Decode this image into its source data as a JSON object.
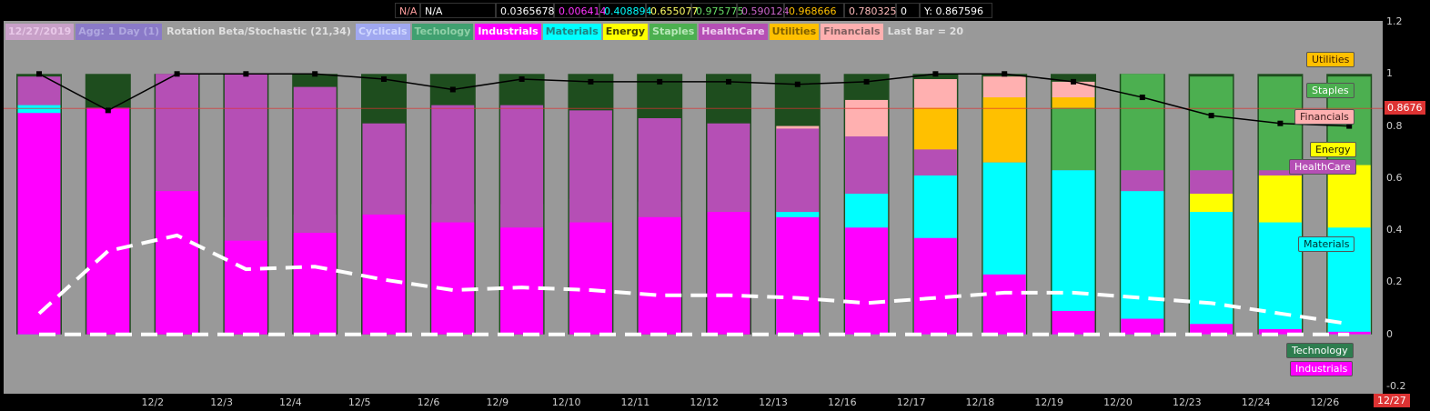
{
  "topbar": {
    "cells": [
      {
        "text": "N/A",
        "color": "#ff9f9f"
      },
      {
        "text": "N/A",
        "color": "#ffffff"
      },
      {
        "text": "0.0365678",
        "color": "#ffffff"
      },
      {
        "text": "0.006414",
        "color": "#ff33ff"
      },
      {
        "text": "0.408894",
        "color": "#00ffff"
      },
      {
        "text": "0.655077",
        "color": "#ffff66"
      },
      {
        "text": "0.975775",
        "color": "#66dd66"
      },
      {
        "text": "0.590124",
        "color": "#cc66cc"
      },
      {
        "text": "0.968666",
        "color": "#ffc000"
      },
      {
        "text": "0.780325",
        "color": "#ffbbbb"
      },
      {
        "text": "0",
        "color": "#ffffff"
      },
      {
        "text": "Y: 0.867596",
        "color": "#ffffff"
      }
    ]
  },
  "legend": [
    {
      "text": "12/27/2019",
      "bg": "#c8a0c8",
      "fg": "#e8c8e8"
    },
    {
      "text": "Agg: 1 Day (1)",
      "bg": "#8a7ac8",
      "fg": "#b0a8e0"
    },
    {
      "text": "Rotation Beta/Stochastic (21,34)",
      "bg": "#9a9a9a",
      "fg": "#e0e0e0"
    },
    {
      "text": "Cyclicals",
      "bg": "#a0a8f0",
      "fg": "#d0d8ff"
    },
    {
      "text": "Techology",
      "bg": "#40a070",
      "fg": "#90d0a8"
    },
    {
      "text": "Industrials",
      "bg": "#ff00ff",
      "fg": "#ffffff"
    },
    {
      "text": "Materials",
      "bg": "#00ffff",
      "fg": "#208080"
    },
    {
      "text": "Energy",
      "bg": "#ffff00",
      "fg": "#404000"
    },
    {
      "text": "Staples",
      "bg": "#4caf50",
      "fg": "#b8e8b8"
    },
    {
      "text": "HealthCare",
      "bg": "#b54fb5",
      "fg": "#f0d0f0"
    },
    {
      "text": "Utilities",
      "bg": "#ffc000",
      "fg": "#806000"
    },
    {
      "text": "Financials",
      "bg": "#ffb0b0",
      "fg": "#806060"
    },
    {
      "text": "Last Bar = 20",
      "bg": "#9a9a9a",
      "fg": "#e0e0e0"
    }
  ],
  "y_tick_labels": [
    "1.2",
    "1",
    "0.8",
    "0.6",
    "0.4",
    "0.2",
    "0",
    "-0.2"
  ],
  "current_value_label": "0.8676",
  "last_date_label": "12/27",
  "right_labels": [
    {
      "text": "Utilities",
      "bg": "#ffc000",
      "fg": "#402000"
    },
    {
      "text": "Staples",
      "bg": "#4caf50",
      "fg": "#ffffff"
    },
    {
      "text": "Financials",
      "bg": "#ffb0b0",
      "fg": "#402020"
    },
    {
      "text": "Energy",
      "bg": "#ffff00",
      "fg": "#202000"
    },
    {
      "text": "HealthCare",
      "bg": "#b54fb5",
      "fg": "#ffffff"
    },
    {
      "text": "Materials",
      "bg": "#00ffff",
      "fg": "#003030"
    },
    {
      "text": "Technology",
      "bg": "#2e7d4f",
      "fg": "#ffffff"
    },
    {
      "text": "Industrials",
      "bg": "#ff00ff",
      "fg": "#ffffff"
    }
  ],
  "chart_data": {
    "type": "bar",
    "title": "Rotation Beta/Stochastic (21,34)",
    "ylim": [
      -0.2,
      1.2
    ],
    "grid": false,
    "categories": [
      "",
      "12/2",
      "12/3",
      "12/4",
      "12/5",
      "12/6",
      "12/9",
      "12/10",
      "12/11",
      "12/12",
      "12/13",
      "12/16",
      "12/17",
      "12/18",
      "12/19",
      "12/20",
      "12/23",
      "12/24",
      "12/26",
      "12/27"
    ],
    "colors": {
      "Technology": "#1e4d1e",
      "Industrials": "#ff00ff",
      "Materials": "#00ffff",
      "Energy": "#ffff00",
      "Staples": "#4caf50",
      "HealthCare": "#b54fb5",
      "Utilities": "#ffc000",
      "Financials": "#ffb0b0"
    },
    "series": [
      {
        "name": "Technology",
        "values": [
          1,
          1,
          1,
          1,
          1,
          1,
          1,
          1,
          1,
          1,
          1,
          1,
          1,
          1,
          1,
          1,
          1,
          1,
          1,
          1
        ]
      },
      {
        "name": "Financials",
        "values": [
          0,
          0,
          0,
          0,
          0,
          0,
          0,
          0,
          0,
          0,
          0,
          0.8,
          0.9,
          0.98,
          0.99,
          0.97,
          0,
          0,
          0,
          0
        ]
      },
      {
        "name": "Utilities",
        "values": [
          0,
          0,
          0,
          0,
          0,
          0,
          0,
          0,
          0,
          0,
          0,
          0,
          0,
          0.87,
          0.91,
          0.91,
          0,
          0,
          0,
          0
        ]
      },
      {
        "name": "Staples",
        "values": [
          0,
          0,
          0,
          0.45,
          0.46,
          0.48,
          0.5,
          0.5,
          0.52,
          0.51,
          0.48,
          0,
          0,
          0,
          0,
          0.87,
          1.0,
          0.99,
          0.99,
          0.99
        ]
      },
      {
        "name": "HealthCare",
        "values": [
          0.99,
          0,
          1.0,
          1.0,
          0.95,
          0.81,
          0.88,
          0.88,
          0.86,
          0.83,
          0.81,
          0.79,
          0.76,
          0.71,
          0.66,
          0.63,
          0.63,
          0.63,
          0.63,
          0.59
        ]
      },
      {
        "name": "Energy",
        "values": [
          0,
          0,
          0,
          0,
          0,
          0,
          0,
          0,
          0,
          0,
          0,
          0,
          0,
          0,
          0,
          0,
          0,
          0.54,
          0.61,
          0.65
        ]
      },
      {
        "name": "Materials",
        "values": [
          0.88,
          0,
          0,
          0,
          0,
          0,
          0,
          0,
          0,
          0,
          0,
          0.47,
          0.54,
          0.61,
          0.66,
          0.63,
          0.55,
          0.47,
          0.43,
          0.41
        ]
      },
      {
        "name": "Industrials",
        "values": [
          0.85,
          0.87,
          0.55,
          0.36,
          0.39,
          0.46,
          0.43,
          0.41,
          0.43,
          0.45,
          0.47,
          0.45,
          0.41,
          0.37,
          0.23,
          0.09,
          0.06,
          0.04,
          0.02,
          0.01
        ]
      }
    ],
    "lines": [
      {
        "name": "Beta",
        "color": "#000000",
        "markers": true,
        "values": [
          1.0,
          0.86,
          1.0,
          1.0,
          1.0,
          0.98,
          0.94,
          0.98,
          0.97,
          0.97,
          0.97,
          0.96,
          0.97,
          1.0,
          1.0,
          0.97,
          0.91,
          0.84,
          0.81,
          0.8
        ]
      },
      {
        "name": "Stochastic",
        "color": "#ffffff",
        "dashed": true,
        "values": [
          0.08,
          0.32,
          0.38,
          0.25,
          0.26,
          0.21,
          0.17,
          0.18,
          0.17,
          0.15,
          0.15,
          0.14,
          0.12,
          0.14,
          0.16,
          0.16,
          0.14,
          0.12,
          0.08,
          0.04
        ]
      },
      {
        "name": "Zero",
        "color": "#ffffff",
        "dashed": true,
        "values": [
          0,
          0,
          0,
          0,
          0,
          0,
          0,
          0,
          0,
          0,
          0,
          0,
          0,
          0,
          0,
          0,
          0,
          0,
          0,
          0
        ]
      }
    ],
    "reference_line": {
      "value": 0.8676,
      "color": "#d33"
    }
  }
}
